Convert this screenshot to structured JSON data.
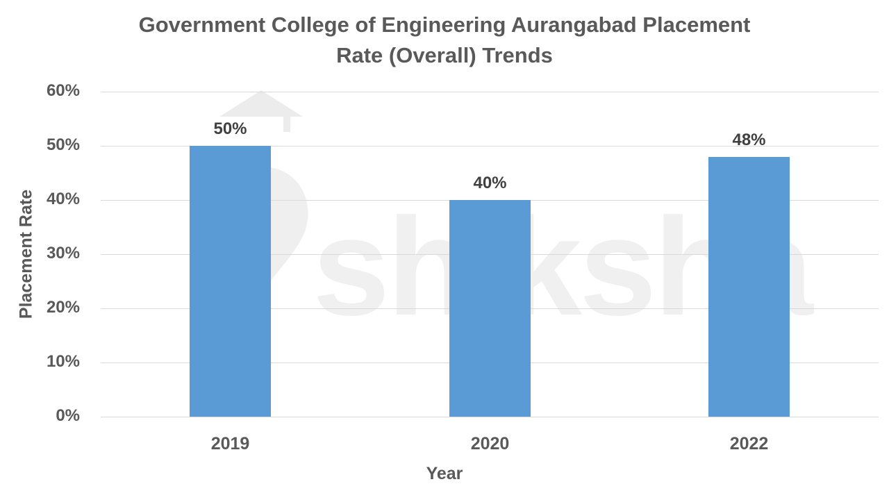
{
  "chart_data": {
    "type": "bar",
    "title": "Government College of Engineering Aurangabad  Placement Rate (Overall) Trends",
    "title_lines": [
      "Government College of Engineering Aurangabad  Placement",
      "Rate (Overall) Trends"
    ],
    "xlabel": "Year",
    "ylabel": "Placement Rate",
    "categories": [
      "2019",
      "2020",
      "2022"
    ],
    "values": [
      50,
      40,
      48
    ],
    "data_labels": [
      "50%",
      "40%",
      "48%"
    ],
    "ylim": [
      0,
      60
    ],
    "yticks": [
      "0%",
      "10%",
      "20%",
      "30%",
      "40%",
      "50%",
      "60%"
    ],
    "grid": true,
    "legend": "none",
    "bar_color": "#5b9bd5"
  },
  "watermark": {
    "text": "shiksha"
  }
}
